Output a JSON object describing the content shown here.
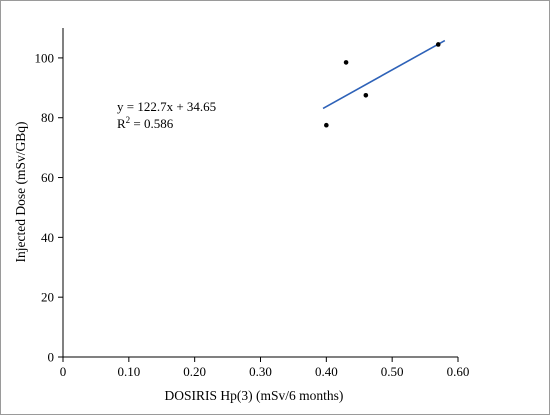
{
  "chart_data": {
    "type": "scatter",
    "xlabel": "DOSIRIS Hp(3) (mSv/6 months)",
    "ylabel": "Injected Dose (mSv/GBq)",
    "xlim": [
      0,
      0.6
    ],
    "ylim": [
      0,
      110
    ],
    "x_ticks": [
      0,
      0.1,
      0.2,
      0.3,
      0.4,
      0.5,
      0.6
    ],
    "x_tick_labels": [
      "0",
      "0.10",
      "0.20",
      "0.30",
      "0.40",
      "0.50",
      "0.60"
    ],
    "y_ticks": [
      0,
      20,
      40,
      60,
      80,
      100
    ],
    "y_tick_labels": [
      "0",
      "20",
      "40",
      "60",
      "80",
      "100"
    ],
    "grid": false,
    "series": [
      {
        "points": [
          {
            "x": 0.4,
            "y": 77.5
          },
          {
            "x": 0.43,
            "y": 98.5
          },
          {
            "x": 0.46,
            "y": 87.5
          },
          {
            "x": 0.57,
            "y": 104.5
          }
        ]
      }
    ],
    "trendline": {
      "slope": 122.7,
      "intercept": 34.65,
      "x_range": [
        0.395,
        0.58
      ],
      "color": "#2e62b8"
    },
    "annotations": {
      "equation": "y = 122.7x + 34.65",
      "r_squared_label": "R",
      "r_squared_exp": "2",
      "r_squared_value": " = 0.586"
    }
  }
}
